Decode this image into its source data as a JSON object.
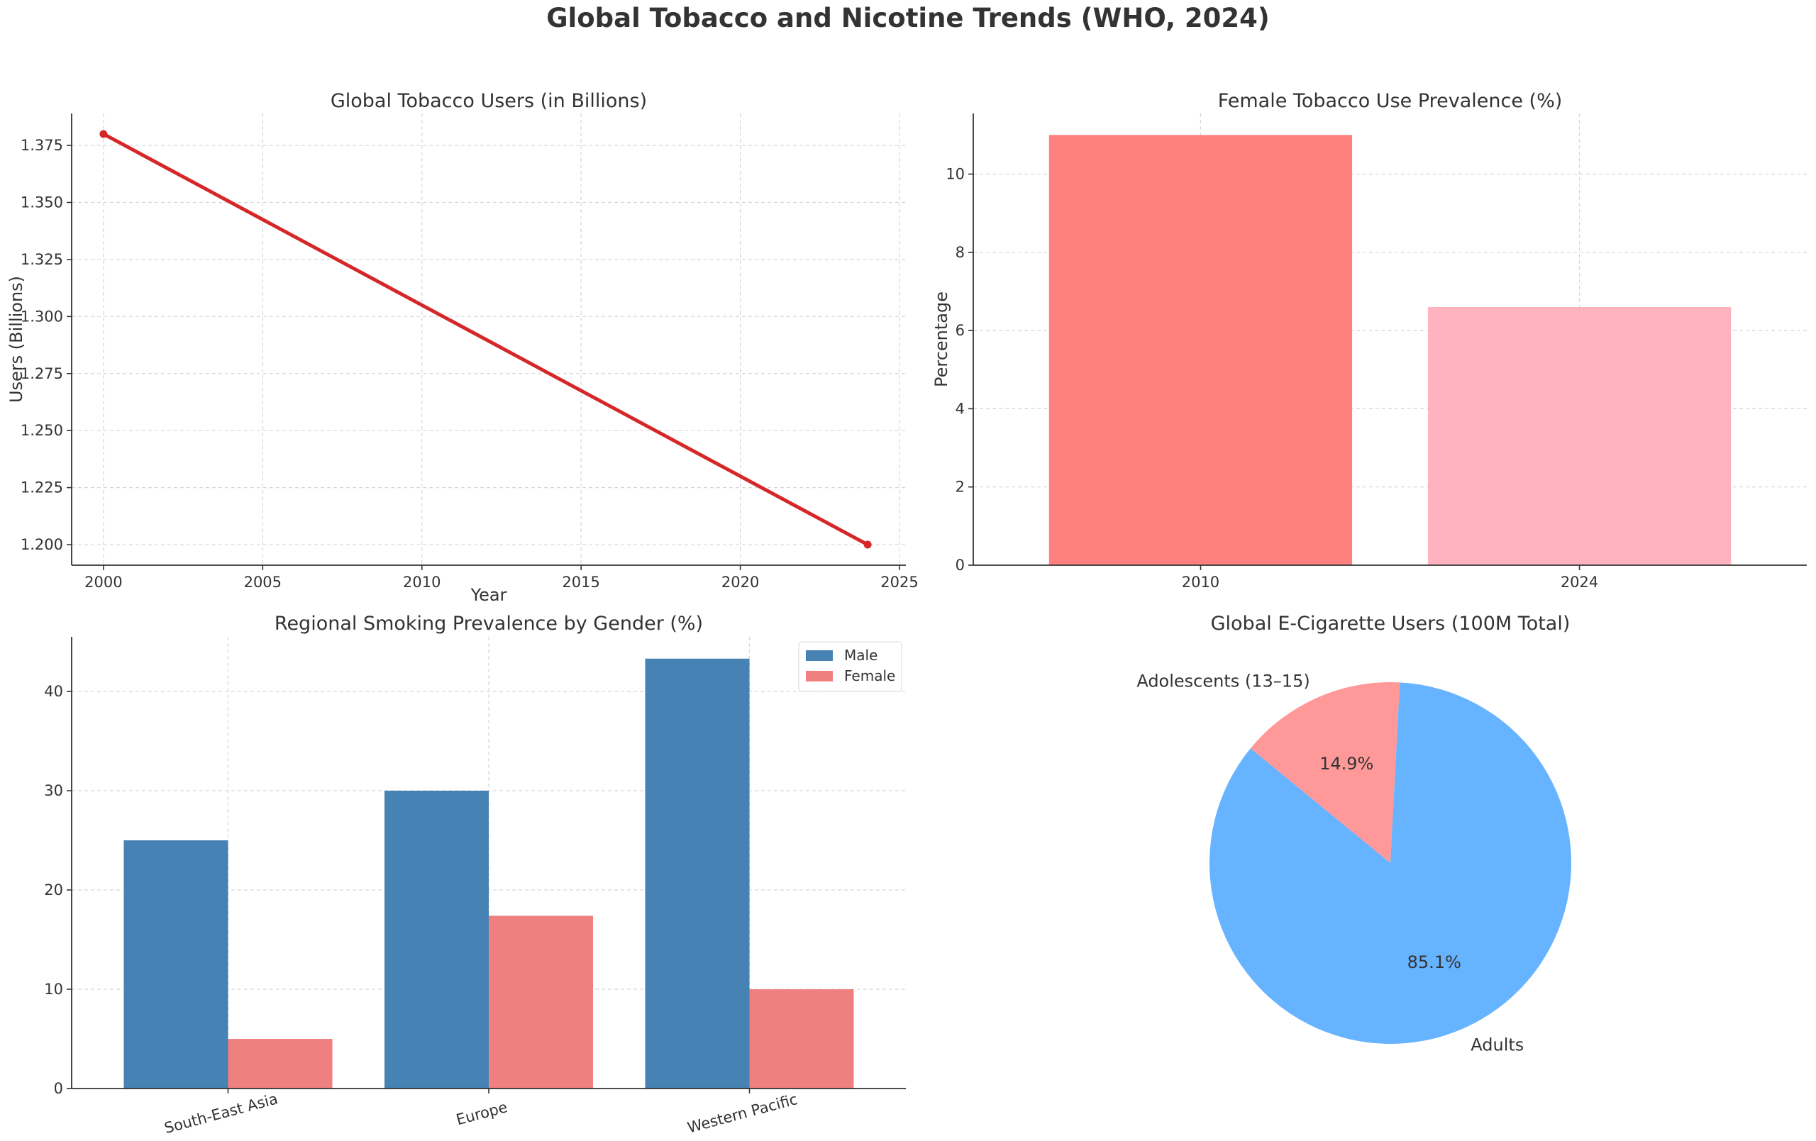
{
  "figure": {
    "title": "Global Tobacco and Nicotine Trends (WHO, 2024)"
  },
  "chart_data": [
    {
      "type": "line",
      "title": "Global Tobacco Users (in Billions)",
      "xlabel": "Year",
      "ylabel": "Users (Billions)",
      "x": [
        2000,
        2024
      ],
      "series": [
        {
          "values": [
            1.38,
            1.2
          ],
          "color": "#d62728"
        }
      ],
      "xlim": [
        1999,
        2025.2
      ],
      "ylim": [
        1.191,
        1.389
      ],
      "xticks": [
        2000,
        2005,
        2010,
        2015,
        2020,
        2025
      ],
      "xtick_labels": [
        "2000",
        "2005",
        "2010",
        "2015",
        "2020",
        "2025"
      ],
      "yticks": [
        1.2,
        1.225,
        1.25,
        1.275,
        1.3,
        1.325,
        1.35,
        1.375
      ],
      "ytick_labels": [
        "1.200",
        "1.225",
        "1.250",
        "1.275",
        "1.300",
        "1.325",
        "1.350",
        "1.375"
      ],
      "grid": true
    },
    {
      "type": "bar",
      "title": "Female Tobacco Use Prevalence (%)",
      "xlabel": "",
      "ylabel": "Percentage",
      "categories": [
        "2010",
        "2024"
      ],
      "values": [
        11.0,
        6.6
      ],
      "colors": [
        "#ff7f7f",
        "#ffb3be"
      ],
      "ylim": [
        0,
        11.55
      ],
      "yticks": [
        0,
        2,
        4,
        6,
        8,
        10
      ],
      "ytick_labels": [
        "0",
        "2",
        "4",
        "6",
        "8",
        "10"
      ],
      "grid": true
    },
    {
      "type": "bar",
      "title": "Regional Smoking Prevalence by Gender (%)",
      "xlabel": "",
      "ylabel": "",
      "categories": [
        "South-East Asia",
        "Europe",
        "Western Pacific"
      ],
      "series": [
        {
          "name": "Male",
          "values": [
            25,
            30,
            43.3
          ],
          "color": "#4682b4"
        },
        {
          "name": "Female",
          "values": [
            5,
            17.4,
            10
          ],
          "color": "#f08080"
        }
      ],
      "ylim": [
        0,
        45.5
      ],
      "yticks": [
        0,
        10,
        20,
        30,
        40
      ],
      "ytick_labels": [
        "0",
        "10",
        "20",
        "30",
        "40"
      ],
      "legend": "top-right",
      "grid": true
    },
    {
      "type": "pie",
      "title": "Global E-Cigarette Users (100M Total)",
      "labels": [
        "Adolescents (13–15)",
        "Adults"
      ],
      "values": [
        14.9,
        85.1
      ],
      "pct_labels": [
        "14.9%",
        "85.1%"
      ],
      "colors": [
        "#ff9999",
        "#66b3ff"
      ]
    }
  ]
}
